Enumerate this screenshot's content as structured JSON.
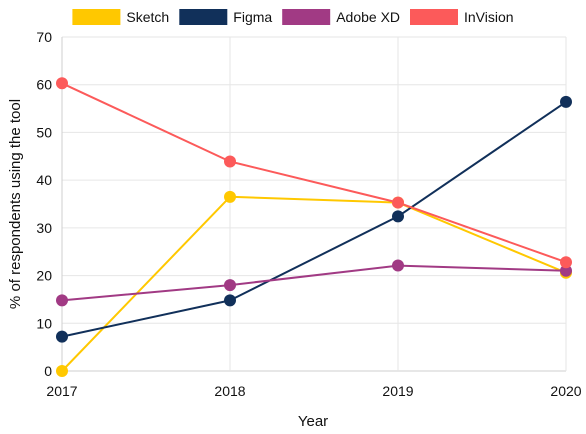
{
  "chart_data": {
    "type": "line",
    "title": "",
    "xlabel": "Year",
    "ylabel": "% of respondents using the tool",
    "x": [
      "2017",
      "2018",
      "2019",
      "2020"
    ],
    "ylim": [
      0,
      70
    ],
    "yticks": [
      0,
      10,
      20,
      30,
      40,
      50,
      60,
      70
    ],
    "grid": true,
    "legend_position": "top",
    "series": [
      {
        "name": "Sketch",
        "color": "#ffc800",
        "values": [
          0,
          36.5,
          35.3,
          20.6
        ]
      },
      {
        "name": "Figma",
        "color": "#11305a",
        "values": [
          7.2,
          14.8,
          32.4,
          56.4
        ]
      },
      {
        "name": "Adobe XD",
        "color": "#a13a84",
        "values": [
          14.8,
          18,
          22.1,
          21
        ]
      },
      {
        "name": "InVision",
        "color": "#fc5a5a",
        "values": [
          60.3,
          43.9,
          35.3,
          22.8
        ]
      }
    ]
  }
}
